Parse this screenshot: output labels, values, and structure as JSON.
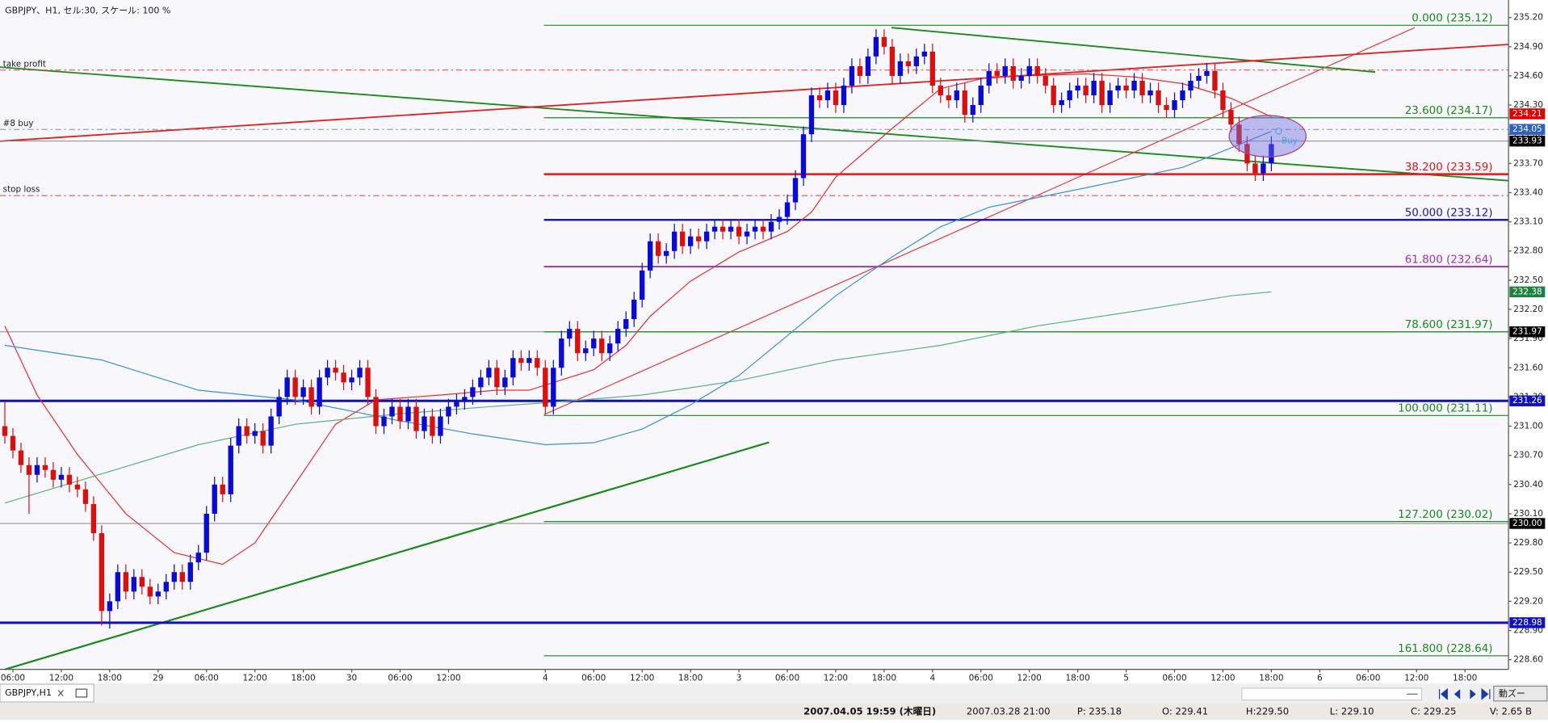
{
  "header": {
    "title": "GBPJPY、H1, セル:30, スケール: 100 %"
  },
  "chart_data": {
    "type": "candlestick",
    "xlim": [
      -0.6,
      186.4
    ],
    "ylim": [
      228.5,
      235.38
    ],
    "xticks": [
      {
        "value": 1,
        "label": "06:00"
      },
      {
        "value": 7,
        "label": "12:00"
      },
      {
        "value": 13,
        "label": "18:00"
      },
      {
        "value": 19,
        "label": "29"
      },
      {
        "value": 25,
        "label": "06:00"
      },
      {
        "value": 31,
        "label": "12:00"
      },
      {
        "value": 37,
        "label": "18:00"
      },
      {
        "value": 43,
        "label": "30"
      },
      {
        "value": 49,
        "label": "06:00"
      },
      {
        "value": 55,
        "label": "12:00"
      },
      {
        "value": 67,
        "label": "4"
      },
      {
        "value": 73,
        "label": "06:00"
      },
      {
        "value": 79,
        "label": "12:00"
      },
      {
        "value": 85,
        "label": "18:00"
      },
      {
        "value": 91,
        "label": "3"
      },
      {
        "value": 97,
        "label": "06:00"
      },
      {
        "value": 103,
        "label": "12:00"
      },
      {
        "value": 109,
        "label": "18:00"
      },
      {
        "value": 115,
        "label": "4"
      },
      {
        "value": 121,
        "label": "06:00"
      },
      {
        "value": 127,
        "label": "12:00"
      },
      {
        "value": 133,
        "label": "18:00"
      },
      {
        "value": 139,
        "label": "5"
      },
      {
        "value": 145,
        "label": "06:00"
      },
      {
        "value": 151,
        "label": "12:00"
      },
      {
        "value": 157,
        "label": "18:00"
      },
      {
        "value": 163,
        "label": "6"
      },
      {
        "value": 169,
        "label": "06:00"
      },
      {
        "value": 175,
        "label": "12:00"
      },
      {
        "value": 181,
        "label": "18:00"
      }
    ],
    "yticks": [
      {
        "value": 228.6,
        "label": "228.60"
      },
      {
        "value": 228.9,
        "label": "228.90"
      },
      {
        "value": 229.2,
        "label": "229.20"
      },
      {
        "value": 229.5,
        "label": "229.50"
      },
      {
        "value": 229.8,
        "label": "229.80"
      },
      {
        "value": 230.1,
        "label": "230.10"
      },
      {
        "value": 230.4,
        "label": "230.40"
      },
      {
        "value": 230.7,
        "label": "230.70"
      },
      {
        "value": 231.0,
        "label": "231.00"
      },
      {
        "value": 231.3,
        "label": "231.30"
      },
      {
        "value": 231.6,
        "label": "231.60"
      },
      {
        "value": 231.9,
        "label": "231.90"
      },
      {
        "value": 232.2,
        "label": "232.20"
      },
      {
        "value": 232.5,
        "label": "232.50"
      },
      {
        "value": 232.8,
        "label": "232.80"
      },
      {
        "value": 233.1,
        "label": "233.10"
      },
      {
        "value": 233.4,
        "label": "233.40"
      },
      {
        "value": 233.7,
        "label": "233.70"
      },
      {
        "value": 234.0,
        "label": "234.00"
      },
      {
        "value": 234.3,
        "label": "234.30"
      },
      {
        "value": 234.6,
        "label": "234.60"
      },
      {
        "value": 234.9,
        "label": "234.90"
      },
      {
        "value": 235.2,
        "label": "235.20"
      }
    ],
    "up_color": "#0a0ad0",
    "down_color": "#d81010",
    "open": [
      231.0,
      230.9,
      230.75,
      230.6,
      230.5,
      230.6,
      230.55,
      230.45,
      230.5,
      230.4,
      230.35,
      230.2,
      229.9,
      229.1,
      229.2,
      229.5,
      229.3,
      229.45,
      229.35,
      229.25,
      229.3,
      229.4,
      229.5,
      229.4,
      229.6,
      229.7,
      230.1,
      230.4,
      230.3,
      230.8,
      231.0,
      230.9,
      230.95,
      230.8,
      231.1,
      231.3,
      231.5,
      231.3,
      231.4,
      231.2,
      231.5,
      231.6,
      231.55,
      231.45,
      231.5,
      231.6,
      231.3,
      231.0,
      231.1,
      231.2,
      231.05,
      231.2,
      230.95,
      231.1,
      230.9,
      231.1,
      231.2,
      231.25,
      231.3,
      231.4,
      231.5,
      231.6,
      231.4,
      231.5,
      231.7,
      231.65,
      231.7,
      231.6,
      231.2,
      231.6,
      231.9,
      232.0,
      231.75,
      231.8,
      231.9,
      231.75,
      231.85,
      232.0,
      232.1,
      232.3,
      232.6,
      232.9,
      232.75,
      232.8,
      233.0,
      232.85,
      232.95,
      232.9,
      233.0,
      233.05,
      233.0,
      233.05,
      232.95,
      233.0,
      233.05,
      233.0,
      233.1,
      233.15,
      233.3,
      233.55,
      234.0,
      234.4,
      234.35,
      234.45,
      234.3,
      234.5,
      234.7,
      234.6,
      234.8,
      235.0,
      234.9,
      234.6,
      234.75,
      234.7,
      234.8,
      234.85,
      234.5,
      234.4,
      234.35,
      234.45,
      234.2,
      234.3,
      234.5,
      234.65,
      234.6,
      234.7,
      234.55,
      234.6,
      234.7,
      234.6,
      234.5,
      234.3,
      234.35,
      234.45,
      234.5,
      234.4,
      234.55,
      234.3,
      234.45,
      234.5,
      234.45,
      234.55,
      234.4,
      234.45,
      234.3,
      234.25,
      234.35,
      234.45,
      234.55,
      234.6,
      234.65,
      234.45,
      234.25,
      234.1,
      233.9,
      233.7,
      233.6,
      233.7
    ],
    "high": [
      231.25,
      230.98,
      230.83,
      230.68,
      230.68,
      230.68,
      230.63,
      230.58,
      230.58,
      230.48,
      230.43,
      230.28,
      229.98,
      229.28,
      229.58,
      229.58,
      229.53,
      229.53,
      229.43,
      229.38,
      229.48,
      229.58,
      229.58,
      229.68,
      229.78,
      230.18,
      230.48,
      230.48,
      230.88,
      231.08,
      231.08,
      231.03,
      231.03,
      231.18,
      231.38,
      231.58,
      231.58,
      231.48,
      231.48,
      231.58,
      231.68,
      231.68,
      231.63,
      231.58,
      231.68,
      231.68,
      231.38,
      231.18,
      231.28,
      231.28,
      231.28,
      231.28,
      231.18,
      231.18,
      231.18,
      231.28,
      231.33,
      231.38,
      231.48,
      231.58,
      231.68,
      231.68,
      231.58,
      231.78,
      231.78,
      231.78,
      231.78,
      231.68,
      231.68,
      231.98,
      232.08,
      232.08,
      231.88,
      231.98,
      231.98,
      231.93,
      232.08,
      232.18,
      232.38,
      232.68,
      232.98,
      232.98,
      232.88,
      233.08,
      233.08,
      233.03,
      233.03,
      233.08,
      233.13,
      233.13,
      233.13,
      233.13,
      233.08,
      233.13,
      233.13,
      233.18,
      233.23,
      233.38,
      233.63,
      234.08,
      234.48,
      234.48,
      234.53,
      234.53,
      234.58,
      234.78,
      234.78,
      234.88,
      235.08,
      235.08,
      234.98,
      234.83,
      234.83,
      234.88,
      234.93,
      234.93,
      234.58,
      234.48,
      234.53,
      234.53,
      234.38,
      234.58,
      234.73,
      234.73,
      234.78,
      234.78,
      234.68,
      234.78,
      234.78,
      234.68,
      234.58,
      234.43,
      234.53,
      234.58,
      234.58,
      234.63,
      234.63,
      234.53,
      234.58,
      234.58,
      234.63,
      234.63,
      234.53,
      234.53,
      234.38,
      234.43,
      234.53,
      234.63,
      234.68,
      234.73,
      234.73,
      234.53,
      234.33,
      234.18,
      233.98,
      233.78,
      233.78,
      233.98
    ],
    "low": [
      230.82,
      230.67,
      230.52,
      230.1,
      230.42,
      230.47,
      230.37,
      230.37,
      230.32,
      230.27,
      230.12,
      229.82,
      228.95,
      228.92,
      229.12,
      229.22,
      229.22,
      229.27,
      229.17,
      229.17,
      229.22,
      229.32,
      229.32,
      229.32,
      229.52,
      229.62,
      230.02,
      230.22,
      230.22,
      230.72,
      230.82,
      230.82,
      230.72,
      230.72,
      231.02,
      231.22,
      231.22,
      231.22,
      231.12,
      231.12,
      231.42,
      231.47,
      231.37,
      231.37,
      231.42,
      231.22,
      230.92,
      230.92,
      231.02,
      230.97,
      230.97,
      230.87,
      230.87,
      230.82,
      230.82,
      231.02,
      231.12,
      231.17,
      231.22,
      231.32,
      231.42,
      231.32,
      231.32,
      231.42,
      231.57,
      231.57,
      231.52,
      231.12,
      231.12,
      231.52,
      231.82,
      231.67,
      231.67,
      231.72,
      231.67,
      231.67,
      231.77,
      231.92,
      232.02,
      232.22,
      232.52,
      232.67,
      232.67,
      232.72,
      232.77,
      232.77,
      232.82,
      232.82,
      232.92,
      232.92,
      232.92,
      232.87,
      232.87,
      232.92,
      232.92,
      232.92,
      233.02,
      233.07,
      233.22,
      233.47,
      233.92,
      234.27,
      234.27,
      234.22,
      234.22,
      234.42,
      234.52,
      234.52,
      234.72,
      234.82,
      234.52,
      234.52,
      234.62,
      234.62,
      234.72,
      234.42,
      234.32,
      234.27,
      234.27,
      234.12,
      234.12,
      234.22,
      234.42,
      234.52,
      234.52,
      234.47,
      234.47,
      234.52,
      234.52,
      234.42,
      234.22,
      234.22,
      234.27,
      234.37,
      234.32,
      234.32,
      234.22,
      234.22,
      234.37,
      234.37,
      234.37,
      234.32,
      234.32,
      234.22,
      234.17,
      234.17,
      234.27,
      234.37,
      234.47,
      234.52,
      234.37,
      234.17,
      234.02,
      233.82,
      233.62,
      233.52,
      233.52,
      233.62
    ],
    "close": [
      230.9,
      230.75,
      230.6,
      230.5,
      230.6,
      230.55,
      230.45,
      230.5,
      230.4,
      230.35,
      230.2,
      229.9,
      229.1,
      229.2,
      229.5,
      229.3,
      229.45,
      229.35,
      229.25,
      229.3,
      229.4,
      229.5,
      229.4,
      229.6,
      229.7,
      230.1,
      230.4,
      230.3,
      230.8,
      231.0,
      230.9,
      230.95,
      230.8,
      231.1,
      231.3,
      231.5,
      231.3,
      231.4,
      231.2,
      231.5,
      231.6,
      231.55,
      231.45,
      231.5,
      231.6,
      231.3,
      231.0,
      231.1,
      231.2,
      231.05,
      231.2,
      230.95,
      231.1,
      230.9,
      231.1,
      231.2,
      231.25,
      231.3,
      231.4,
      231.5,
      231.6,
      231.4,
      231.5,
      231.7,
      231.65,
      231.7,
      231.6,
      231.2,
      231.6,
      231.9,
      232.0,
      231.75,
      231.8,
      231.9,
      231.75,
      231.85,
      232.0,
      232.1,
      232.3,
      232.6,
      232.9,
      232.75,
      232.8,
      233.0,
      232.85,
      232.95,
      232.9,
      233.0,
      233.05,
      233.0,
      233.05,
      232.95,
      233.0,
      233.05,
      233.0,
      233.1,
      233.15,
      233.3,
      233.55,
      234.0,
      234.4,
      234.35,
      234.45,
      234.3,
      234.5,
      234.7,
      234.6,
      234.8,
      235.0,
      234.9,
      234.6,
      234.75,
      234.7,
      234.8,
      234.85,
      234.5,
      234.4,
      234.35,
      234.45,
      234.2,
      234.3,
      234.5,
      234.65,
      234.6,
      234.7,
      234.55,
      234.6,
      234.7,
      234.6,
      234.5,
      234.3,
      234.35,
      234.45,
      234.5,
      234.4,
      234.55,
      234.3,
      234.45,
      234.5,
      234.45,
      234.55,
      234.4,
      234.45,
      234.3,
      234.25,
      234.35,
      234.45,
      234.55,
      234.6,
      234.65,
      234.45,
      234.25,
      234.1,
      233.9,
      233.7,
      233.6,
      233.7,
      233.9
    ],
    "moving_averages": [
      {
        "color": "#e83030",
        "x": [
          0,
          4,
          9,
          15,
          21,
          27,
          31,
          36,
          41,
          46,
          54,
          61,
          65,
          73,
          77,
          80,
          85,
          91,
          97,
          100,
          103,
          110,
          116,
          122,
          134,
          140,
          146,
          152,
          157
        ],
        "values": [
          232.03,
          231.32,
          230.71,
          230.1,
          229.7,
          229.58,
          229.8,
          230.41,
          231.02,
          231.27,
          231.32,
          231.37,
          231.37,
          231.58,
          231.83,
          232.13,
          232.49,
          232.79,
          233.0,
          233.2,
          233.56,
          234.06,
          234.47,
          234.59,
          234.62,
          234.59,
          234.52,
          234.37,
          234.18
        ]
      },
      {
        "color": "#3a90d8",
        "x": [
          0,
          12,
          24,
          36,
          48,
          58,
          67,
          73,
          79,
          85,
          91,
          97,
          103,
          110,
          116,
          122,
          134,
          146,
          152,
          157
        ],
        "values": [
          231.83,
          231.68,
          231.37,
          231.27,
          231.07,
          230.92,
          230.81,
          230.83,
          230.97,
          231.22,
          231.52,
          231.93,
          232.34,
          232.74,
          233.05,
          233.25,
          233.45,
          233.66,
          233.86,
          234.03
        ]
      },
      {
        "color": "#60b080",
        "x": [
          0,
          12,
          24,
          36,
          48,
          60,
          67,
          79,
          91,
          103,
          116,
          128,
          140,
          152,
          157
        ],
        "values": [
          230.21,
          230.51,
          230.81,
          231.02,
          231.12,
          231.2,
          231.24,
          231.32,
          231.47,
          231.68,
          231.83,
          232.03,
          232.18,
          232.34,
          232.38
        ]
      }
    ],
    "fib_levels": [
      {
        "label": "0.000 (235.12)",
        "value": 235.12,
        "color": "#1a8a1a"
      },
      {
        "label": "23.600 (234.17)",
        "value": 234.17,
        "color": "#1a8a1a"
      },
      {
        "label": "38.200 (233.59)",
        "value": 233.59,
        "color": "#e01818"
      },
      {
        "label": "50.000 (233.12)",
        "value": 233.12,
        "color": "#1818b0"
      },
      {
        "label": "61.800 (232.64)",
        "value": 232.64,
        "color": "#a030c0"
      },
      {
        "label": "78.600 (231.97)",
        "value": 231.97,
        "color": "#1a8a1a"
      },
      {
        "label": "100.000 (231.11)",
        "value": 231.11,
        "color": "#1a8a1a"
      },
      {
        "label": "127.200 (230.02)",
        "value": 230.02,
        "color": "#1a8a1a"
      },
      {
        "label": "161.800 (228.64)",
        "value": 228.64,
        "color": "#1a8a1a"
      }
    ],
    "levels": [
      {
        "label": "take profit",
        "value": 234.66,
        "color": "#e04040"
      },
      {
        "label": "#8 buy",
        "value": 234.05,
        "color": "#6080a0"
      },
      {
        "label": "stop loss",
        "value": 233.37,
        "color": "#e04040"
      }
    ],
    "price_tags": [
      {
        "value": 234.21,
        "label": "234.21",
        "color": "#e00000"
      },
      {
        "value": 234.05,
        "label": "234.05",
        "color": "#3060c0"
      },
      {
        "value": 233.93,
        "label": "233.93",
        "color": "#000000",
        "line": "thin"
      },
      {
        "value": 232.38,
        "label": "232.38",
        "color": "#208040"
      },
      {
        "value": 231.97,
        "label": "231.97",
        "color": "#000000",
        "line": "thin"
      },
      {
        "value": 231.26,
        "label": "231.26",
        "color": "#1010c0",
        "line": "thick"
      },
      {
        "value": 230.0,
        "label": "230.00",
        "color": "#000000",
        "line": "thin"
      },
      {
        "value": 228.98,
        "label": "228.98",
        "color": "#1010c0",
        "line": "thick"
      }
    ],
    "order_marker": {
      "label": "Buy",
      "value": 233.93
    }
  },
  "tab": {
    "title": "GBPJPY,H1",
    "button": "動ズー"
  },
  "status_bar": {
    "datetime": "2007.04.05 19:59 (木曜日)",
    "bar_time": "2007.03.28 21:00",
    "p": "P: 235.18",
    "o": "O: 229.41",
    "h": "H:229.50",
    "l": "L: 229.10",
    "c": "C: 229.25",
    "v": "V: 2.65 B"
  }
}
